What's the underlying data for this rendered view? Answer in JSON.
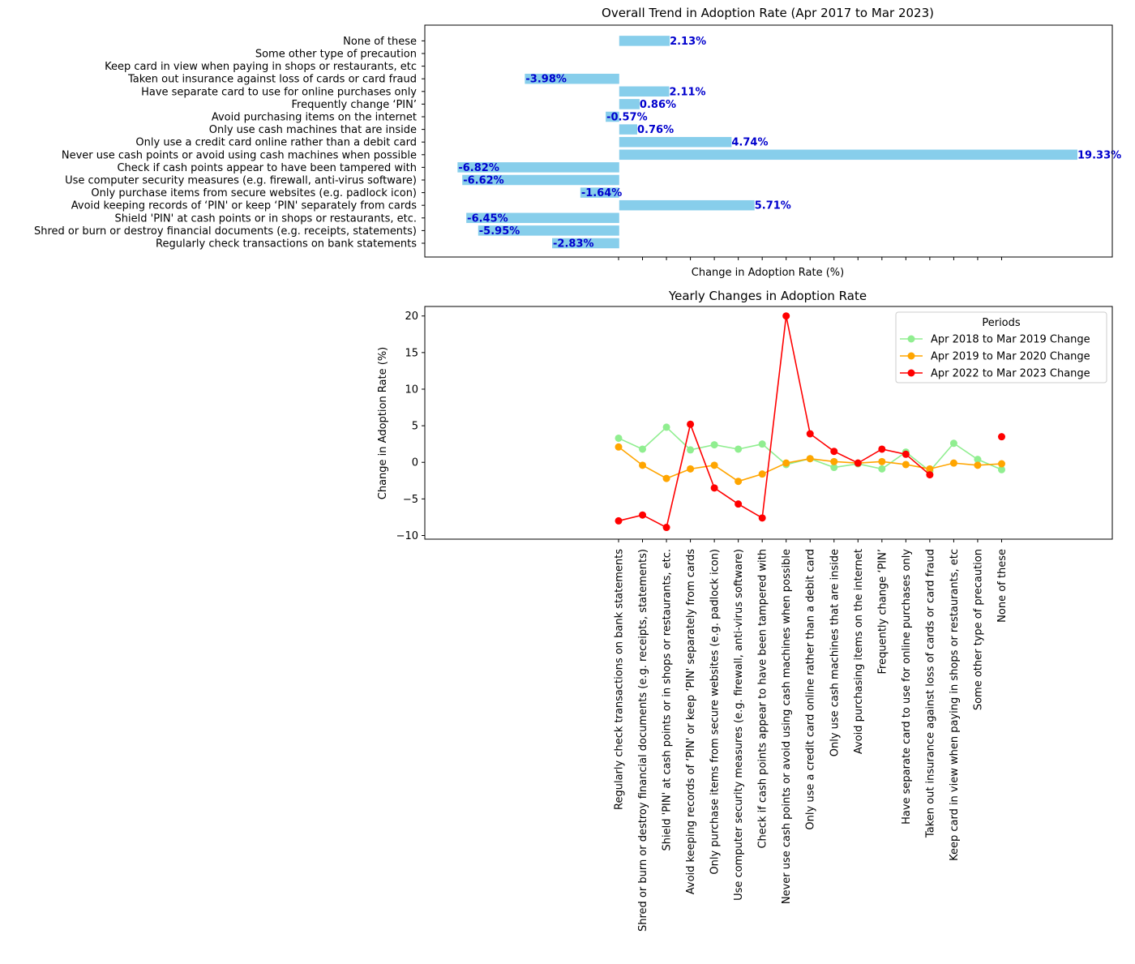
{
  "chart_data": [
    {
      "type": "bar",
      "orientation": "horizontal",
      "title": "Overall Trend in Adoption Rate (Apr 2017 to Mar 2023)",
      "xlabel": "Change in Adoption Rate (%)",
      "ylabel": "",
      "xlim": [
        -8.2,
        20.8
      ],
      "x_tick_labels_visible": false,
      "bar_color": "#87ceeb",
      "label_color": "#0000cd",
      "categories": [
        "Regularly check transactions on bank statements",
        "Shred or burn or destroy financial documents (e.g. receipts, statements)",
        "Shield 'PIN' at cash points or in shops or restaurants, etc.",
        "Avoid keeping records of ‘PIN' or keep ‘PIN' separately from cards",
        "Only purchase items from secure websites (e.g. padlock icon)",
        "Use computer security measures (e.g. firewall, anti-virus software)",
        "Check if cash points appear to have been tampered with",
        "Never use cash points or avoid using cash machines when possible",
        "Only use a credit card online rather than a debit card",
        "Only use cash machines that are inside",
        "Avoid purchasing items on the internet",
        "Frequently change ‘PIN’",
        "Have separate card to use for online purchases only",
        "Taken out insurance against loss of cards or card fraud",
        "Keep card in view when paying in shops or restaurants, etc",
        "Some other type of precaution",
        "None of these"
      ],
      "values": [
        -2.83,
        -5.95,
        -6.45,
        5.71,
        -1.64,
        -6.62,
        -6.82,
        19.33,
        4.74,
        0.76,
        -0.57,
        0.86,
        2.11,
        -3.98,
        null,
        null,
        2.13
      ],
      "data_labels": [
        "-2.83%",
        "-5.95%",
        "-6.45%",
        "5.71%",
        "-1.64%",
        "-6.62%",
        "-6.82%",
        "19.33%",
        "4.74%",
        "0.76%",
        "-0.57%",
        "0.86%",
        "2.11%",
        "-3.98%",
        "",
        "",
        "2.13%"
      ]
    },
    {
      "type": "line",
      "title": "Yearly Changes in Adoption Rate",
      "xlabel": "",
      "ylabel": "Change in Adoption Rate (%)",
      "ylim": [
        -10.5,
        21.3
      ],
      "yticks": [
        -10,
        -5,
        0,
        5,
        10,
        15,
        20
      ],
      "legend_title": "Periods",
      "legend_position": "top-right",
      "grid": false,
      "series": [
        {
          "name": "Apr 2018 to Mar 2019 Change",
          "color": "#90ee90",
          "values": [
            3.3,
            1.8,
            4.8,
            1.7,
            2.4,
            1.8,
            2.5,
            -0.3,
            0.5,
            -0.7,
            -0.2,
            -0.9,
            1.4,
            -1.2,
            2.6,
            0.4,
            -1.0
          ]
        },
        {
          "name": "Apr 2019 to Mar 2020 Change",
          "color": "#ffa500",
          "values": [
            2.1,
            -0.4,
            -2.2,
            -0.9,
            -0.4,
            -2.6,
            -1.6,
            -0.1,
            0.5,
            0.1,
            -0.1,
            0.1,
            -0.3,
            -0.9,
            -0.1,
            -0.4,
            -0.2
          ]
        },
        {
          "name": "Apr 2022 to Mar 2023 Change",
          "color": "#ff0000",
          "values": [
            -8.0,
            -7.2,
            -8.9,
            5.2,
            -3.5,
            -5.7,
            -7.6,
            20.0,
            3.9,
            1.5,
            -0.1,
            1.8,
            1.1,
            -1.7,
            null,
            null,
            3.5
          ]
        }
      ]
    }
  ]
}
